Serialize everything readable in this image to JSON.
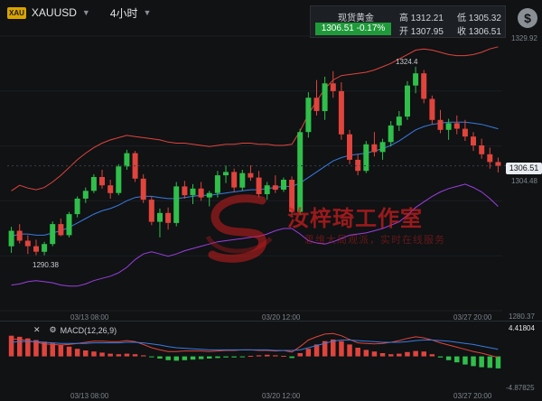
{
  "header": {
    "badge": "XAU",
    "symbol": "XAUUSD",
    "timeframe": "4小时"
  },
  "quote": {
    "name": "现货黄金",
    "high_label": "高 1312.21",
    "low_label": "低 1305.32",
    "price_change": "1306.51  -0.17%",
    "open_label": "开 1307.95",
    "close_label": "收 1306.51"
  },
  "price_axis": [
    "1329.92",
    "1306.51",
    "1304.48",
    "1280.37"
  ],
  "annotations": {
    "high_marker": "1324.4",
    "low_marker": "1290.38"
  },
  "time_axis": [
    "03/13 08:00",
    "03/20 12:00",
    "03/27 20:00"
  ],
  "macd": {
    "label": "MACD(12,26,9)",
    "axis": [
      "4.41804",
      "-4.87825"
    ]
  },
  "watermark": {
    "title": "汝梓琦工作室",
    "subtitle": "思维大局观派，实时在线服务"
  },
  "colors": {
    "up": "#2fbf4a",
    "down": "#e0443c",
    "upper_band": "#e0443c",
    "mid_band": "#3a7be0",
    "lower_band": "#9b3fe0"
  },
  "chart_data": {
    "type": "candlestick",
    "candles": [
      [
        1292.0,
        1295.5,
        1290.8,
        1294.8
      ],
      [
        1294.8,
        1296.0,
        1292.5,
        1293.0
      ],
      [
        1293.0,
        1294.0,
        1290.6,
        1292.0
      ],
      [
        1292.0,
        1293.2,
        1290.4,
        1291.0
      ],
      [
        1291.0,
        1292.8,
        1290.38,
        1292.4
      ],
      [
        1292.4,
        1296.5,
        1292.0,
        1296.0
      ],
      [
        1296.0,
        1297.0,
        1293.8,
        1294.0
      ],
      [
        1294.0,
        1298.2,
        1293.6,
        1297.8
      ],
      [
        1297.8,
        1301.0,
        1297.2,
        1300.6
      ],
      [
        1300.6,
        1302.6,
        1299.8,
        1302.0
      ],
      [
        1302.0,
        1305.0,
        1301.6,
        1304.5
      ],
      [
        1304.5,
        1305.8,
        1302.4,
        1303.0
      ],
      [
        1303.0,
        1304.0,
        1300.6,
        1301.6
      ],
      [
        1301.6,
        1306.8,
        1301.2,
        1306.4
      ],
      [
        1306.4,
        1309.4,
        1305.8,
        1308.8
      ],
      [
        1308.8,
        1309.2,
        1303.6,
        1304.2
      ],
      [
        1304.2,
        1305.0,
        1299.8,
        1300.4
      ],
      [
        1300.4,
        1301.0,
        1295.8,
        1296.4
      ],
      [
        1296.4,
        1298.8,
        1293.6,
        1298.0
      ],
      [
        1298.0,
        1299.0,
        1295.0,
        1296.2
      ],
      [
        1296.2,
        1303.6,
        1295.6,
        1302.8
      ],
      [
        1302.8,
        1303.8,
        1300.6,
        1301.2
      ],
      [
        1301.2,
        1303.2,
        1299.6,
        1302.4
      ],
      [
        1302.4,
        1303.6,
        1300.2,
        1300.8
      ],
      [
        1300.8,
        1302.0,
        1299.2,
        1301.6
      ],
      [
        1301.6,
        1305.6,
        1300.8,
        1304.8
      ],
      [
        1304.8,
        1306.6,
        1303.4,
        1305.4
      ],
      [
        1305.4,
        1306.0,
        1301.8,
        1302.6
      ],
      [
        1302.6,
        1305.8,
        1302.0,
        1305.2
      ],
      [
        1305.2,
        1306.6,
        1303.8,
        1304.4
      ],
      [
        1304.4,
        1305.6,
        1300.8,
        1301.4
      ],
      [
        1301.4,
        1303.6,
        1300.4,
        1303.0
      ],
      [
        1303.0,
        1304.8,
        1301.6,
        1302.2
      ],
      [
        1302.2,
        1304.4,
        1301.8,
        1304.0
      ],
      [
        1304.0,
        1304.6,
        1297.6,
        1298.2
      ],
      [
        1298.2,
        1313.2,
        1297.6,
        1312.6
      ],
      [
        1312.6,
        1319.8,
        1311.6,
        1318.8
      ],
      [
        1318.8,
        1322.0,
        1315.6,
        1316.4
      ],
      [
        1316.4,
        1322.6,
        1314.8,
        1321.4
      ],
      [
        1321.4,
        1323.6,
        1318.8,
        1320.0
      ],
      [
        1320.0,
        1321.6,
        1311.2,
        1312.2
      ],
      [
        1312.2,
        1313.0,
        1306.8,
        1307.6
      ],
      [
        1307.6,
        1308.6,
        1304.8,
        1305.6
      ],
      [
        1305.6,
        1311.0,
        1305.2,
        1310.4
      ],
      [
        1310.4,
        1312.6,
        1308.2,
        1309.0
      ],
      [
        1309.0,
        1311.4,
        1307.6,
        1310.8
      ],
      [
        1310.8,
        1314.6,
        1310.0,
        1313.8
      ],
      [
        1313.8,
        1316.4,
        1312.8,
        1315.4
      ],
      [
        1315.4,
        1321.8,
        1314.8,
        1321.0
      ],
      [
        1321.0,
        1324.4,
        1319.6,
        1323.2
      ],
      [
        1323.2,
        1323.8,
        1317.8,
        1318.6
      ],
      [
        1318.6,
        1319.2,
        1314.0,
        1314.8
      ],
      [
        1314.8,
        1316.6,
        1312.4,
        1313.0
      ],
      [
        1313.0,
        1315.0,
        1311.2,
        1314.2
      ],
      [
        1314.2,
        1315.6,
        1312.2,
        1313.2
      ],
      [
        1313.2,
        1314.8,
        1311.0,
        1311.8
      ],
      [
        1311.8,
        1312.6,
        1309.2,
        1310.2
      ],
      [
        1310.2,
        1311.4,
        1307.8,
        1308.6
      ],
      [
        1308.6,
        1309.8,
        1306.0,
        1307.2
      ],
      [
        1307.2,
        1308.0,
        1305.32,
        1306.51
      ]
    ],
    "upper_band": [
      1302,
      1303,
      1302.5,
      1302.2,
      1302.6,
      1303.6,
      1304.8,
      1306.2,
      1307.6,
      1308.8,
      1309.8,
      1310.6,
      1311.2,
      1311.6,
      1312.0,
      1311.8,
      1311.6,
      1311.4,
      1311.2,
      1310.8,
      1310.6,
      1310.6,
      1310.4,
      1310.2,
      1310.0,
      1310.2,
      1310.4,
      1310.4,
      1310.6,
      1310.6,
      1310.4,
      1310.4,
      1310.2,
      1310.2,
      1310.4,
      1312.8,
      1315.8,
      1318.2,
      1320.4,
      1322.0,
      1322.8,
      1323.0,
      1323.2,
      1323.4,
      1323.8,
      1324.4,
      1325.0,
      1325.8,
      1326.6,
      1327.4,
      1327.6,
      1327.4,
      1327.0,
      1326.6,
      1326.4,
      1326.4,
      1326.6,
      1327.0,
      1327.6,
      1328.0
    ],
    "mid_band": [
      1293.8,
      1294.2,
      1294.2,
      1294.0,
      1294.0,
      1294.4,
      1294.8,
      1295.4,
      1296.2,
      1297.0,
      1297.8,
      1298.4,
      1298.8,
      1299.4,
      1300.2,
      1300.8,
      1301.0,
      1301.0,
      1300.8,
      1300.6,
      1300.6,
      1300.8,
      1301.0,
      1301.2,
      1301.2,
      1301.4,
      1301.6,
      1301.8,
      1302.0,
      1302.2,
      1302.2,
      1302.4,
      1302.6,
      1302.8,
      1302.8,
      1303.4,
      1304.4,
      1305.4,
      1306.4,
      1307.4,
      1308.0,
      1308.4,
      1308.6,
      1308.8,
      1309.2,
      1309.6,
      1310.2,
      1311.0,
      1312.0,
      1313.0,
      1313.6,
      1314.0,
      1314.2,
      1314.4,
      1314.4,
      1314.4,
      1314.2,
      1314.0,
      1313.6,
      1313.2
    ],
    "lower_band": [
      1285.0,
      1285.2,
      1285.6,
      1285.8,
      1285.6,
      1285.4,
      1285.0,
      1284.8,
      1284.8,
      1285.2,
      1285.8,
      1286.2,
      1286.6,
      1287.2,
      1288.2,
      1289.6,
      1290.6,
      1291.0,
      1290.6,
      1290.2,
      1290.6,
      1291.2,
      1291.6,
      1292.0,
      1292.4,
      1292.8,
      1293.0,
      1293.2,
      1293.4,
      1293.6,
      1293.8,
      1294.2,
      1294.8,
      1295.2,
      1295.2,
      1294.2,
      1293.0,
      1292.6,
      1292.4,
      1292.8,
      1293.4,
      1294.0,
      1294.2,
      1294.4,
      1294.8,
      1295.2,
      1295.8,
      1296.4,
      1297.6,
      1299.0,
      1300.0,
      1301.0,
      1301.8,
      1302.4,
      1302.8,
      1303.2,
      1302.6,
      1301.8,
      1300.6,
      1299.2
    ],
    "macd_hist": [
      3.8,
      3.6,
      3.3,
      3.0,
      2.7,
      2.4,
      2.1,
      1.8,
      1.4,
      1.1,
      0.9,
      0.7,
      0.5,
      0.4,
      0.5,
      0.4,
      0.2,
      -0.1,
      -0.4,
      -0.7,
      -0.8,
      -0.7,
      -0.6,
      -0.5,
      -0.4,
      -0.3,
      -0.2,
      -0.2,
      -0.1,
      0.1,
      0.2,
      0.3,
      0.2,
      0.1,
      -0.3,
      0.6,
      1.4,
      2.2,
      2.8,
      3.1,
      2.8,
      2.2,
      1.6,
      1.2,
      0.9,
      0.6,
      0.4,
      0.5,
      0.8,
      1.0,
      0.9,
      0.4,
      -0.2,
      -0.7,
      -1.1,
      -1.5,
      -1.8,
      -2.0,
      -2.1,
      -2.2
    ],
    "macd_line": [
      3.2,
      3.1,
      2.9,
      2.6,
      2.3,
      2.2,
      2.1,
      2.2,
      2.4,
      2.6,
      2.8,
      2.8,
      2.7,
      2.7,
      2.9,
      2.7,
      2.2,
      1.6,
      1.2,
      0.9,
      0.9,
      1.0,
      1.0,
      1.0,
      0.9,
      1.0,
      1.1,
      1.1,
      1.2,
      1.2,
      1.1,
      1.1,
      1.0,
      1.1,
      0.8,
      1.8,
      3.0,
      3.6,
      4.1,
      4.2,
      3.8,
      3.1,
      2.5,
      2.4,
      2.3,
      2.4,
      2.6,
      2.9,
      3.3,
      3.6,
      3.4,
      3.0,
      2.5,
      2.1,
      1.7,
      1.3,
      0.9,
      0.6,
      0.2,
      -0.2
    ],
    "signal_line": [
      2.6,
      2.7,
      2.7,
      2.7,
      2.6,
      2.5,
      2.4,
      2.4,
      2.4,
      2.4,
      2.5,
      2.5,
      2.5,
      2.5,
      2.6,
      2.6,
      2.5,
      2.3,
      2.1,
      1.8,
      1.6,
      1.5,
      1.4,
      1.3,
      1.2,
      1.2,
      1.2,
      1.2,
      1.2,
      1.2,
      1.2,
      1.2,
      1.1,
      1.1,
      1.1,
      1.2,
      1.6,
      2.0,
      2.4,
      2.8,
      3.0,
      3.0,
      2.9,
      2.8,
      2.7,
      2.6,
      2.6,
      2.6,
      2.7,
      2.9,
      3.0,
      3.0,
      2.9,
      2.8,
      2.6,
      2.4,
      2.2,
      1.9,
      1.6,
      1.3
    ]
  }
}
